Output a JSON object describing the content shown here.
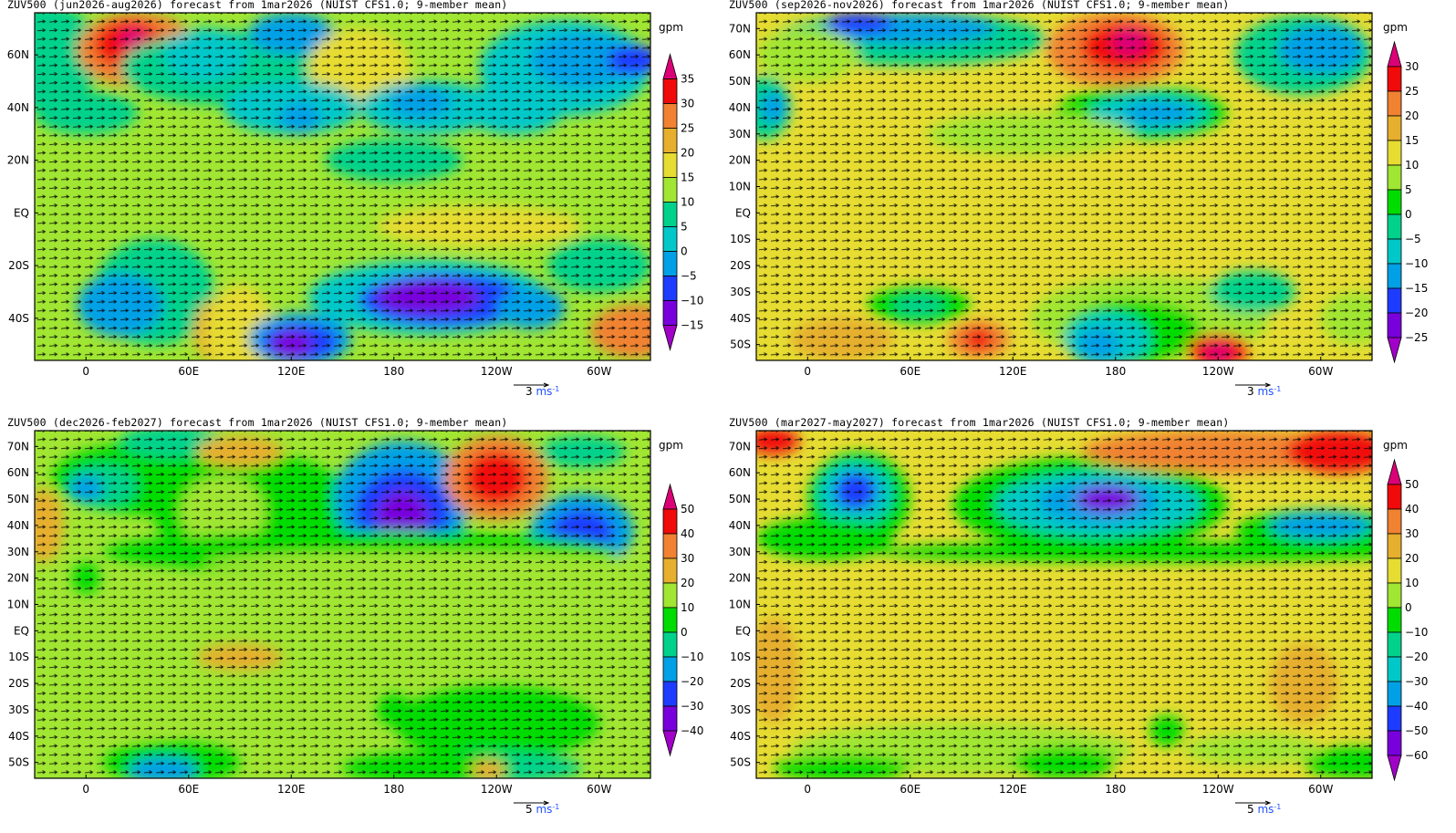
{
  "palette": {
    "magenta": "#dc0078",
    "red": "#f00a0a",
    "orange": "#f08232",
    "gold": "#e6af2d",
    "yellow": "#e6dc32",
    "lime": "#a0e632",
    "green": "#00dc00",
    "teal": "#00d28c",
    "cyan": "#00c8c8",
    "sky": "#00a0e6",
    "blue": "#1e3cff",
    "purple": "#7800dc",
    "violet": "#a000c8"
  },
  "map": {
    "lon_range": [
      -30,
      330
    ],
    "lat_range": [
      -56,
      76
    ],
    "lon_ticks": [
      {
        "lon": 0,
        "label": "0"
      },
      {
        "lon": 60,
        "label": "60E"
      },
      {
        "lon": 120,
        "label": "120E"
      },
      {
        "lon": 180,
        "label": "180"
      },
      {
        "lon": 240,
        "label": "120W"
      },
      {
        "lon": 300,
        "label": "60W"
      }
    ]
  },
  "panels": [
    {
      "title": "ZUV500 (jun2026-aug2026) forecast from 1mar2026 (NUIST CFS1.0; 9-member mean)",
      "unit": "gpm",
      "ref_vector": {
        "value": "3",
        "unit": "ms",
        "exp": "-1"
      },
      "lat_ticks": [
        {
          "lat": 60,
          "label": "60N"
        },
        {
          "lat": 40,
          "label": "40N"
        },
        {
          "lat": 20,
          "label": "20N"
        },
        {
          "lat": 0,
          "label": "EQ"
        },
        {
          "lat": -20,
          "label": "20S"
        },
        {
          "lat": -40,
          "label": "40S"
        }
      ],
      "colorbar": {
        "levels": [
          "35",
          "30",
          "25",
          "20",
          "15",
          "10",
          "5",
          "0",
          "−5",
          "−10",
          "−15"
        ],
        "colors": [
          "magenta",
          "red",
          "orange",
          "gold",
          "yellow",
          "lime",
          "teal",
          "cyan",
          "sky",
          "blue",
          "purple",
          "violet"
        ]
      }
    },
    {
      "title": "ZUV500 (sep2026-nov2026) forecast from 1mar2026 (NUIST CFS1.0; 9-member mean)",
      "unit": "gpm",
      "ref_vector": {
        "value": "3",
        "unit": "ms",
        "exp": "-1"
      },
      "lat_ticks": [
        {
          "lat": 70,
          "label": "70N"
        },
        {
          "lat": 60,
          "label": "60N"
        },
        {
          "lat": 50,
          "label": "50N"
        },
        {
          "lat": 40,
          "label": "40N"
        },
        {
          "lat": 30,
          "label": "30N"
        },
        {
          "lat": 20,
          "label": "20N"
        },
        {
          "lat": 10,
          "label": "10N"
        },
        {
          "lat": 0,
          "label": "EQ"
        },
        {
          "lat": -10,
          "label": "10S"
        },
        {
          "lat": -20,
          "label": "20S"
        },
        {
          "lat": -30,
          "label": "30S"
        },
        {
          "lat": -40,
          "label": "40S"
        },
        {
          "lat": -50,
          "label": "50S"
        }
      ],
      "colorbar": {
        "levels": [
          "30",
          "25",
          "20",
          "15",
          "10",
          "5",
          "0",
          "−5",
          "−10",
          "−15",
          "−20",
          "−25"
        ],
        "colors": [
          "magenta",
          "red",
          "orange",
          "gold",
          "yellow",
          "lime",
          "green",
          "teal",
          "cyan",
          "sky",
          "blue",
          "purple",
          "violet"
        ]
      }
    },
    {
      "title": "ZUV500 (dec2026-feb2027) forecast from 1mar2026 (NUIST CFS1.0; 9-member mean)",
      "unit": "gpm",
      "ref_vector": {
        "value": "5",
        "unit": "ms",
        "exp": "-1"
      },
      "lat_ticks": [
        {
          "lat": 70,
          "label": "70N"
        },
        {
          "lat": 60,
          "label": "60N"
        },
        {
          "lat": 50,
          "label": "50N"
        },
        {
          "lat": 40,
          "label": "40N"
        },
        {
          "lat": 30,
          "label": "30N"
        },
        {
          "lat": 20,
          "label": "20N"
        },
        {
          "lat": 10,
          "label": "10N"
        },
        {
          "lat": 0,
          "label": "EQ"
        },
        {
          "lat": -10,
          "label": "10S"
        },
        {
          "lat": -20,
          "label": "20S"
        },
        {
          "lat": -30,
          "label": "30S"
        },
        {
          "lat": -40,
          "label": "40S"
        },
        {
          "lat": -50,
          "label": "50S"
        }
      ],
      "colorbar": {
        "levels": [
          "50",
          "40",
          "30",
          "20",
          "10",
          "0",
          "−10",
          "−20",
          "−30",
          "−40"
        ],
        "colors": [
          "magenta",
          "red",
          "orange",
          "gold",
          "lime",
          "green",
          "teal",
          "sky",
          "blue",
          "purple",
          "violet"
        ]
      }
    },
    {
      "title": "ZUV500 (mar2027-may2027) forecast from 1mar2026 (NUIST CFS1.0; 9-member mean)",
      "unit": "gpm",
      "ref_vector": {
        "value": "5",
        "unit": "ms",
        "exp": "-1"
      },
      "lat_ticks": [
        {
          "lat": 70,
          "label": "70N"
        },
        {
          "lat": 60,
          "label": "60N"
        },
        {
          "lat": 50,
          "label": "50N"
        },
        {
          "lat": 40,
          "label": "40N"
        },
        {
          "lat": 30,
          "label": "30N"
        },
        {
          "lat": 20,
          "label": "20N"
        },
        {
          "lat": 10,
          "label": "10N"
        },
        {
          "lat": 0,
          "label": "EQ"
        },
        {
          "lat": -10,
          "label": "10S"
        },
        {
          "lat": -20,
          "label": "20S"
        },
        {
          "lat": -30,
          "label": "30S"
        },
        {
          "lat": -40,
          "label": "40S"
        },
        {
          "lat": -50,
          "label": "50S"
        }
      ],
      "colorbar": {
        "levels": [
          "50",
          "40",
          "30",
          "20",
          "10",
          "0",
          "−10",
          "−20",
          "−30",
          "−40",
          "−50",
          "−60"
        ],
        "colors": [
          "magenta",
          "red",
          "orange",
          "gold",
          "yellow",
          "lime",
          "green",
          "teal",
          "cyan",
          "sky",
          "blue",
          "purple",
          "violet"
        ]
      }
    }
  ]
}
